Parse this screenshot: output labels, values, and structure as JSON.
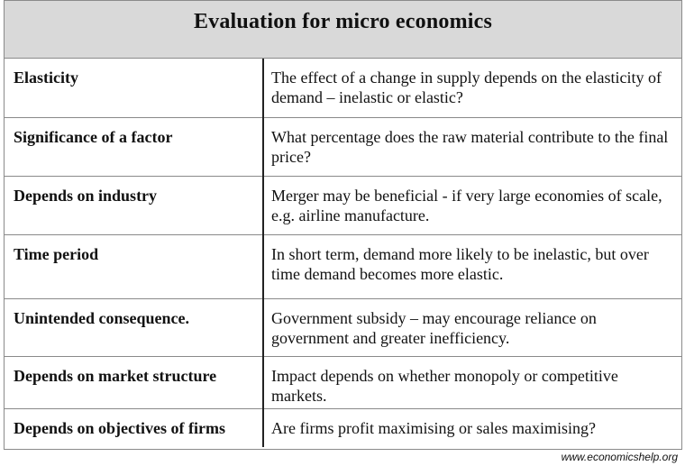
{
  "title": "Evaluation for micro economics",
  "rows": [
    {
      "factor": "Elasticity",
      "description": "The effect of a change in supply depends on the elasticity of demand – inelastic or elastic?"
    },
    {
      "factor": "Significance of a factor",
      "description": "What percentage does the raw material contribute to the final price?"
    },
    {
      "factor": "Depends on industry",
      "description": "Merger may be beneficial - if very large economies of scale, e.g. airline manufacture."
    },
    {
      "factor": "Time period",
      "description": "In short term, demand more likely to be inelastic, but over time demand becomes more elastic."
    },
    {
      "factor": "Unintended consequence.",
      "description": "Government subsidy – may encourage reliance on government and greater inefficiency."
    },
    {
      "factor": "Depends on market structure",
      "description": "Impact depends on whether monopoly or competitive markets."
    },
    {
      "factor": "Depends on objectives of firms",
      "description": "Are firms profit maximising or sales maximising?"
    }
  ],
  "footer": "www.economicshelp.org"
}
